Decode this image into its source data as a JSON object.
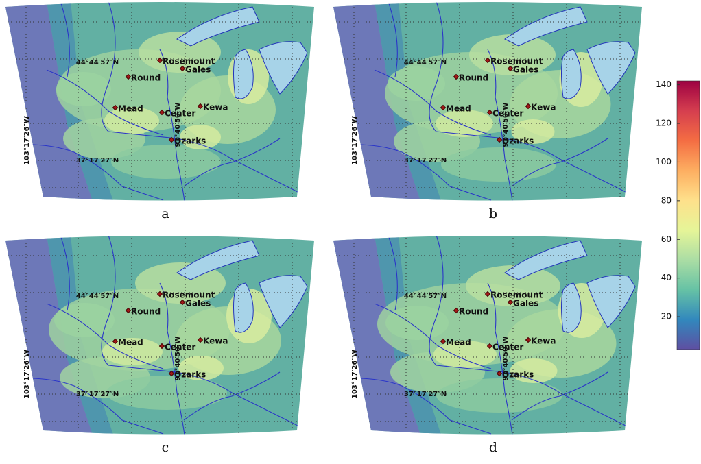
{
  "panels": [
    {
      "label": "a"
    },
    {
      "label": "b"
    },
    {
      "label": "c"
    },
    {
      "label": "d"
    }
  ],
  "sites": [
    {
      "name": "Rosemount"
    },
    {
      "name": "Gales"
    },
    {
      "name": "Round"
    },
    {
      "name": "Mead"
    },
    {
      "name": "Center"
    },
    {
      "name": "Kewa"
    },
    {
      "name": "Ozarks"
    }
  ],
  "latitude_labels": [
    "44°44′57″N",
    "37°17′27″N"
  ],
  "longitude_labels": [
    "103°17′26″W",
    "91°40′50″W"
  ],
  "colorbar": {
    "range": [
      3,
      142
    ],
    "ticks": [
      20,
      40,
      60,
      80,
      100,
      120,
      140
    ],
    "colors": [
      "#5e4fa2",
      "#3288bd",
      "#66c2a5",
      "#abdda4",
      "#e6f598",
      "#fee08b",
      "#fdae61",
      "#f46d43",
      "#d53e4f",
      "#9e0142"
    ]
  }
}
